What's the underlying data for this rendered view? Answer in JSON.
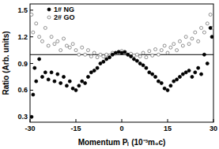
{
  "chart_data": {
    "type": "scatter",
    "x_label": "Momentum Pₗ (10⁻³m₀c)",
    "y_label": "Ratio (Arb. units)",
    "xlim": [
      -30,
      30
    ],
    "ylim": [
      0.24,
      1.57
    ],
    "xticks": [
      -30,
      -15,
      0,
      15,
      30
    ],
    "yticks": [
      0.3,
      0.6,
      0.9,
      1.2,
      1.5
    ],
    "reference_line": 1,
    "legend": "upper left",
    "series": [
      {
        "name": "1# NG",
        "color": "#000000",
        "marker": "filled_circle",
        "x": [
          -29.5,
          -29,
          -28.5,
          -28,
          -27,
          -26,
          -25,
          -24,
          -23,
          -22,
          -21,
          -20,
          -19,
          -18,
          -17,
          -16,
          -15,
          -14,
          -13,
          -12,
          -11,
          -10,
          -9,
          -8,
          -7,
          -6,
          -5,
          -4,
          -3,
          -2,
          -1,
          0,
          1,
          2,
          3,
          4,
          5,
          6,
          7,
          8,
          9,
          10,
          11,
          12,
          13,
          14,
          15,
          16,
          17,
          18,
          19,
          20,
          21,
          22,
          23,
          24,
          25,
          26,
          27,
          28,
          29,
          29.5
        ],
        "values": [
          0.3,
          0.55,
          0.85,
          0.7,
          0.95,
          0.75,
          0.8,
          0.72,
          0.8,
          0.7,
          0.78,
          0.68,
          0.75,
          0.65,
          0.7,
          0.62,
          0.6,
          0.65,
          0.7,
          0.68,
          0.75,
          0.8,
          0.82,
          0.85,
          0.9,
          0.92,
          0.95,
          0.97,
          1.0,
          1.02,
          1.03,
          1.02,
          1.03,
          1.0,
          0.98,
          0.95,
          0.93,
          0.9,
          0.88,
          0.85,
          0.8,
          0.78,
          0.75,
          0.7,
          0.68,
          0.62,
          0.6,
          0.65,
          0.7,
          0.72,
          0.75,
          0.78,
          0.8,
          0.82,
          0.75,
          0.8,
          0.85,
          0.78,
          1.0,
          0.9,
          1.3,
          1.2
        ]
      },
      {
        "name": "2# GO",
        "color": "#000000",
        "marker": "open_circle",
        "x": [
          -29.5,
          -29,
          -28,
          -27,
          -26,
          -25,
          -24,
          -23,
          -22,
          -21,
          -20,
          -19,
          -18,
          -17,
          -16,
          -15,
          -14,
          -13,
          -12,
          -11,
          -10,
          -9,
          -8,
          -7,
          -6,
          -5,
          -4,
          -3,
          -2,
          -1,
          0,
          1,
          2,
          3,
          4,
          5,
          6,
          7,
          8,
          9,
          10,
          11,
          12,
          13,
          14,
          15,
          16,
          17,
          18,
          19,
          20,
          21,
          22,
          23,
          24,
          25,
          26,
          27,
          28,
          29,
          29.5
        ],
        "values": [
          1.45,
          1.25,
          1.35,
          1.2,
          1.15,
          1.3,
          1.1,
          1.2,
          1.12,
          1.15,
          1.05,
          1.18,
          1.1,
          1.08,
          1.12,
          1.05,
          1.0,
          1.08,
          1.0,
          1.05,
          0.98,
          1.02,
          0.97,
          1.0,
          0.98,
          1.0,
          0.99,
          1.02,
          1.01,
          1.03,
          1.04,
          1.02,
          1.0,
          1.01,
          0.99,
          1.0,
          0.98,
          1.02,
          0.97,
          1.04,
          0.99,
          1.06,
          1.0,
          1.05,
          1.1,
          1.02,
          1.08,
          1.12,
          1.05,
          1.15,
          1.1,
          1.2,
          1.12,
          1.18,
          1.25,
          1.15,
          1.3,
          1.25,
          1.35,
          1.45,
          1.3
        ]
      }
    ]
  }
}
